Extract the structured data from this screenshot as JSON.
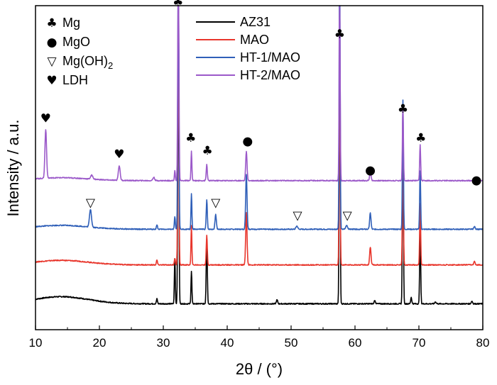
{
  "chart_data": {
    "type": "line",
    "title": "",
    "xlabel": "2θ / (°)",
    "ylabel": "Intensity / a.u.",
    "xlim": [
      10,
      80
    ],
    "ylim": [
      0,
      100
    ],
    "x_ticks": [
      "10",
      "20",
      "30",
      "40",
      "50",
      "60",
      "70",
      "80"
    ],
    "grid": false,
    "legend_position": "top-center",
    "series": [
      {
        "name": "AZ31",
        "color": "#000000",
        "baseline": 8,
        "noise": 0.35,
        "hump": 2.2,
        "peaks": [
          [
            29.0,
            1.5,
            0.12
          ],
          [
            31.8,
            14,
            0.1
          ],
          [
            32.35,
            86,
            0.12
          ],
          [
            34.4,
            10,
            0.1
          ],
          [
            36.8,
            20,
            0.12
          ],
          [
            47.8,
            1.2,
            0.15
          ],
          [
            57.6,
            88,
            0.11
          ],
          [
            63.1,
            1,
            0.15
          ],
          [
            67.5,
            58,
            0.11
          ],
          [
            68.8,
            2,
            0.12
          ],
          [
            70.2,
            23,
            0.11
          ],
          [
            72.6,
            0.6,
            0.15
          ],
          [
            78.3,
            0.8,
            0.15
          ]
        ]
      },
      {
        "name": "MAO",
        "color": "#e8362c",
        "baseline": 20,
        "noise": 0.3,
        "hump": 1.4,
        "peaks": [
          [
            29.0,
            1.5,
            0.12
          ],
          [
            31.8,
            2,
            0.12
          ],
          [
            32.35,
            80,
            0.12
          ],
          [
            34.4,
            12,
            0.1
          ],
          [
            36.8,
            9,
            0.12
          ],
          [
            43.0,
            16,
            0.15
          ],
          [
            57.6,
            70,
            0.11
          ],
          [
            62.4,
            5.5,
            0.15
          ],
          [
            67.5,
            40,
            0.11
          ],
          [
            70.2,
            19,
            0.11
          ],
          [
            78.7,
            1,
            0.15
          ]
        ]
      },
      {
        "name": "HT-1/MAO",
        "color": "#2f5fb8",
        "baseline": 31,
        "noise": 0.3,
        "hump": 1.2,
        "peaks": [
          [
            18.6,
            5.5,
            0.22
          ],
          [
            29.0,
            1.4,
            0.12
          ],
          [
            31.8,
            4,
            0.1
          ],
          [
            32.35,
            84,
            0.12
          ],
          [
            34.4,
            11,
            0.1
          ],
          [
            36.8,
            9,
            0.12
          ],
          [
            38.2,
            4.5,
            0.15
          ],
          [
            43.0,
            17,
            0.15
          ],
          [
            50.9,
            1,
            0.2
          ],
          [
            57.6,
            85,
            0.11
          ],
          [
            58.7,
            1.2,
            0.2
          ],
          [
            62.4,
            5,
            0.15
          ],
          [
            67.5,
            40,
            0.11
          ],
          [
            70.2,
            18,
            0.11
          ],
          [
            78.7,
            0.8,
            0.15
          ]
        ]
      },
      {
        "name": "HT-2/MAO",
        "color": "#9b59c9",
        "baseline": 46,
        "noise": 0.3,
        "hump": 0.9,
        "peaks": [
          [
            11.6,
            15,
            0.18
          ],
          [
            18.8,
            1.2,
            0.25
          ],
          [
            23.1,
            4.5,
            0.2
          ],
          [
            28.5,
            1,
            0.2
          ],
          [
            31.8,
            3,
            0.1
          ],
          [
            32.35,
            80,
            0.12
          ],
          [
            34.4,
            9,
            0.1
          ],
          [
            36.8,
            5,
            0.12
          ],
          [
            43.0,
            9,
            0.15
          ],
          [
            57.6,
            60,
            0.11
          ],
          [
            62.4,
            3,
            0.15
          ],
          [
            67.5,
            23,
            0.11
          ],
          [
            70.2,
            11,
            0.11
          ],
          [
            78.7,
            0.8,
            0.15
          ]
        ]
      }
    ],
    "phase_key": [
      {
        "symbol": "♣",
        "label": "Mg"
      },
      {
        "symbol": "●",
        "label": "MgO"
      },
      {
        "symbol": "▽",
        "label": "Mg(OH)",
        "subscript": "2"
      },
      {
        "symbol": "♥",
        "label": "LDH"
      }
    ],
    "peak_markers": [
      {
        "symbol": "♣",
        "x": 32.3,
        "y": 100
      },
      {
        "symbol": "♥",
        "x": 11.6,
        "y": 64
      },
      {
        "symbol": "♥",
        "x": 23.1,
        "y": 53
      },
      {
        "symbol": "♣",
        "x": 34.3,
        "y": 58
      },
      {
        "symbol": "♣",
        "x": 36.9,
        "y": 54
      },
      {
        "symbol": "●",
        "x": 43.2,
        "y": 57
      },
      {
        "symbol": "♣",
        "x": 57.6,
        "y": 90
      },
      {
        "symbol": "♣",
        "x": 67.5,
        "y": 67
      },
      {
        "symbol": "●",
        "x": 62.4,
        "y": 48
      },
      {
        "symbol": "♣",
        "x": 70.3,
        "y": 58
      },
      {
        "symbol": "●",
        "x": 79.0,
        "y": 45
      },
      {
        "symbol": "▽",
        "x": 18.6,
        "y": 38
      },
      {
        "symbol": "▽",
        "x": 38.2,
        "y": 38
      },
      {
        "symbol": "▽",
        "x": 51.0,
        "y": 34
      },
      {
        "symbol": "▽",
        "x": 58.8,
        "y": 34
      }
    ]
  }
}
